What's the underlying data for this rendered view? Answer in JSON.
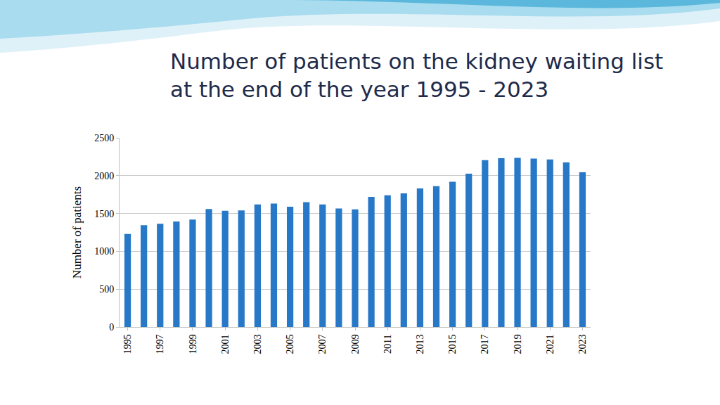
{
  "chart_data": {
    "type": "bar",
    "title": "Number of patients on the kidney waiting list\nat the end of the year 1995 - 2023",
    "y_label": "Number of patients",
    "categories": [
      "1995",
      null,
      "1997",
      null,
      "1999",
      null,
      "2001",
      null,
      "2003",
      null,
      "2005",
      null,
      "2007",
      null,
      "2009",
      null,
      "2011",
      null,
      "2013",
      null,
      "2015",
      null,
      "2017",
      null,
      "2019",
      null,
      "2021",
      null,
      "2023"
    ],
    "values": [
      1230,
      1345,
      1365,
      1395,
      1420,
      1560,
      1535,
      1540,
      1620,
      1630,
      1590,
      1650,
      1620,
      1565,
      1555,
      1720,
      1740,
      1765,
      1830,
      1860,
      1920,
      2025,
      2205,
      2230,
      2235,
      2225,
      2215,
      2175,
      2045
    ],
    "color": "#2878c8",
    "ylim": [
      0,
      2500
    ],
    "yticks": [
      0,
      500,
      1000,
      1500,
      2000,
      2500
    ],
    "grid": true
  }
}
